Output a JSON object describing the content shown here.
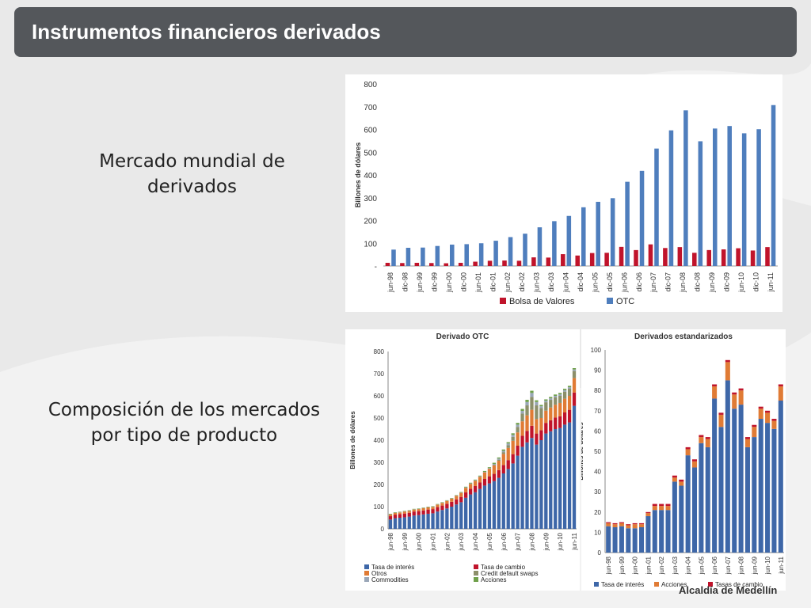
{
  "slide": {
    "title": "Instrumentos financieros derivados",
    "caption_1_line1": "Mercado mundial de",
    "caption_1_line2": "derivados",
    "caption_2_line1": "Composición de los mercados",
    "caption_2_line2": "por tipo de producto",
    "footer_fragment": "Alcaldía de Medellín",
    "colors": {
      "title_bar": "#54575b",
      "background": "#e9e9e9"
    }
  },
  "chart_data": [
    {
      "type": "bar",
      "title": "",
      "ylabel": "Billones de dólares",
      "xlabel": "",
      "ylim": [
        0,
        800
      ],
      "yticks": [
        "-",
        "100",
        "200",
        "300",
        "400",
        "500",
        "600",
        "700",
        "800"
      ],
      "categories": [
        "jun-98",
        "dic-98",
        "jun-99",
        "dic-99",
        "jun-00",
        "dic-00",
        "jun-01",
        "dic-01",
        "jun-02",
        "dic-02",
        "jun-03",
        "dic-03",
        "jun-04",
        "dic-04",
        "jun-05",
        "dic-05",
        "jun-06",
        "dic-06",
        "jun-07",
        "dic-07",
        "jun-08",
        "dic-08",
        "jun-09",
        "dic-09",
        "jun-10",
        "dic-10",
        "jun-11"
      ],
      "series": [
        {
          "name": "Bolsa de Valores",
          "color": "#c0142b",
          "values": [
            14,
            13,
            14,
            13,
            12,
            14,
            19,
            23,
            24,
            23,
            38,
            37,
            52,
            46,
            57,
            58,
            84,
            70,
            95,
            79,
            83,
            58,
            70,
            73,
            78,
            68,
            83
          ]
        },
        {
          "name": "OTC",
          "color": "#4f7ebd",
          "values": [
            72,
            80,
            81,
            88,
            94,
            96,
            100,
            111,
            127,
            142,
            170,
            197,
            220,
            258,
            282,
            298,
            370,
            418,
            516,
            596,
            684,
            548,
            604,
            615,
            583,
            601,
            707
          ]
        }
      ],
      "legend": "bottom-center",
      "grid": false
    },
    {
      "type": "bar",
      "stacked": true,
      "title": "Derivado OTC",
      "ylabel": "Billones de dólares",
      "xlabel": "",
      "ylim": [
        0,
        800
      ],
      "yticks": [
        "0",
        "100",
        "200",
        "300",
        "400",
        "500",
        "600",
        "700",
        "800"
      ],
      "categories": [
        "jun-98",
        "",
        "",
        "jun-99",
        "",
        "",
        "jun-00",
        "",
        "",
        "jun-01",
        "",
        "",
        "jun-02",
        "",
        "",
        "jun-03",
        "",
        "",
        "jun-04",
        "",
        "",
        "jun-05",
        "",
        "",
        "jun-06",
        "",
        "",
        "jun-07",
        "",
        "",
        "jun-08",
        "",
        "",
        "jun-09",
        "",
        "",
        "jun-10",
        "",
        "",
        "jun-11"
      ],
      "series": [
        {
          "name": "Tasa de interés",
          "color": "#3e67a8",
          "values": [
            42,
            48,
            50,
            52,
            55,
            60,
            62,
            65,
            68,
            70,
            78,
            85,
            92,
            100,
            110,
            120,
            140,
            155,
            165,
            180,
            195,
            205,
            215,
            230,
            250,
            270,
            295,
            330,
            370,
            390,
            410,
            380,
            400,
            430,
            440,
            450,
            455,
            470,
            480,
            555
          ]
        },
        {
          "name": "Tasa de cambio",
          "color": "#c0142b",
          "values": [
            15,
            16,
            16,
            17,
            17,
            18,
            18,
            18,
            19,
            19,
            20,
            20,
            21,
            22,
            23,
            24,
            25,
            26,
            28,
            29,
            30,
            32,
            33,
            35,
            38,
            40,
            42,
            45,
            50,
            52,
            55,
            50,
            45,
            48,
            50,
            52,
            53,
            55,
            57,
            60
          ]
        },
        {
          "name": "Otros",
          "color": "#e07b35",
          "values": [
            8,
            8,
            8,
            9,
            9,
            9,
            9,
            10,
            10,
            10,
            11,
            12,
            13,
            14,
            16,
            18,
            20,
            22,
            24,
            26,
            30,
            34,
            38,
            42,
            50,
            55,
            60,
            60,
            65,
            70,
            72,
            65,
            55,
            55,
            57,
            58,
            60,
            62,
            63,
            65
          ]
        },
        {
          "name": "Credit default swaps",
          "color": "#8c8f6a",
          "values": [
            0,
            0,
            0,
            0,
            0,
            0,
            0,
            0,
            0,
            0,
            0,
            0,
            0,
            0,
            0,
            0,
            0,
            0,
            0,
            0,
            0,
            0,
            3,
            5,
            8,
            12,
            18,
            25,
            35,
            45,
            58,
            62,
            45,
            38,
            35,
            33,
            32,
            32,
            32,
            32
          ]
        },
        {
          "name": "Commodities",
          "color": "#9aa7b8",
          "values": [
            1,
            1,
            1,
            1,
            1,
            1,
            1,
            1,
            1,
            1,
            1,
            1,
            1,
            1,
            1,
            1,
            2,
            2,
            2,
            2,
            2,
            3,
            4,
            5,
            6,
            8,
            9,
            10,
            12,
            15,
            18,
            15,
            8,
            7,
            7,
            7,
            7,
            7,
            7,
            7
          ]
        },
        {
          "name": "Acciones",
          "color": "#6fa04a",
          "values": [
            2,
            2,
            2,
            2,
            2,
            2,
            2,
            2,
            2,
            2,
            2,
            2,
            2,
            2,
            2,
            3,
            3,
            3,
            3,
            3,
            4,
            4,
            5,
            5,
            6,
            6,
            7,
            8,
            9,
            10,
            10,
            8,
            6,
            6,
            6,
            6,
            6,
            6,
            6,
            6
          ]
        }
      ],
      "legend": "bottom"
    },
    {
      "type": "bar",
      "stacked": true,
      "title": "Derivados estandarizados",
      "ylabel": "Billones de dólares",
      "xlabel": "",
      "ylim": [
        0,
        100
      ],
      "yticks": [
        "0",
        "10",
        "20",
        "30",
        "40",
        "50",
        "60",
        "70",
        "80",
        "90",
        "100"
      ],
      "categories": [
        "jun-98",
        "",
        "jun-99",
        "",
        "jun-00",
        "",
        "jun-01",
        "",
        "jun-02",
        "",
        "jun-03",
        "",
        "jun-04",
        "",
        "jun-05",
        "",
        "jun-06",
        "",
        "jun-07",
        "",
        "jun-08",
        "",
        "jun-09",
        "",
        "jun-10",
        "",
        "jun-11"
      ],
      "series": [
        {
          "name": "Tasa de interés",
          "color": "#3e67a8",
          "values": [
            13,
            12.5,
            13,
            12,
            12,
            12.5,
            18,
            21,
            21,
            21,
            35,
            33,
            48,
            42,
            54,
            52,
            76,
            62,
            85,
            71,
            73,
            52,
            57,
            66,
            64,
            61,
            75
          ]
        },
        {
          "name": "Acciones",
          "color": "#e07b35",
          "values": [
            1.5,
            1.5,
            1.5,
            1.5,
            2,
            1.5,
            1.5,
            2,
            2,
            2,
            2,
            2,
            3,
            3,
            3,
            4,
            6,
            6,
            9,
            7,
            7,
            4,
            5,
            5,
            5,
            4,
            7
          ]
        },
        {
          "name": "Tasas de cambio",
          "color": "#c0142b",
          "values": [
            0.5,
            0.5,
            0.5,
            0.5,
            0.5,
            0.5,
            0.5,
            1,
            1,
            1,
            1,
            1,
            1,
            1,
            1,
            1,
            1,
            1,
            1,
            1,
            1,
            1,
            1,
            1,
            1,
            1,
            1
          ]
        }
      ],
      "legend": "bottom"
    }
  ]
}
